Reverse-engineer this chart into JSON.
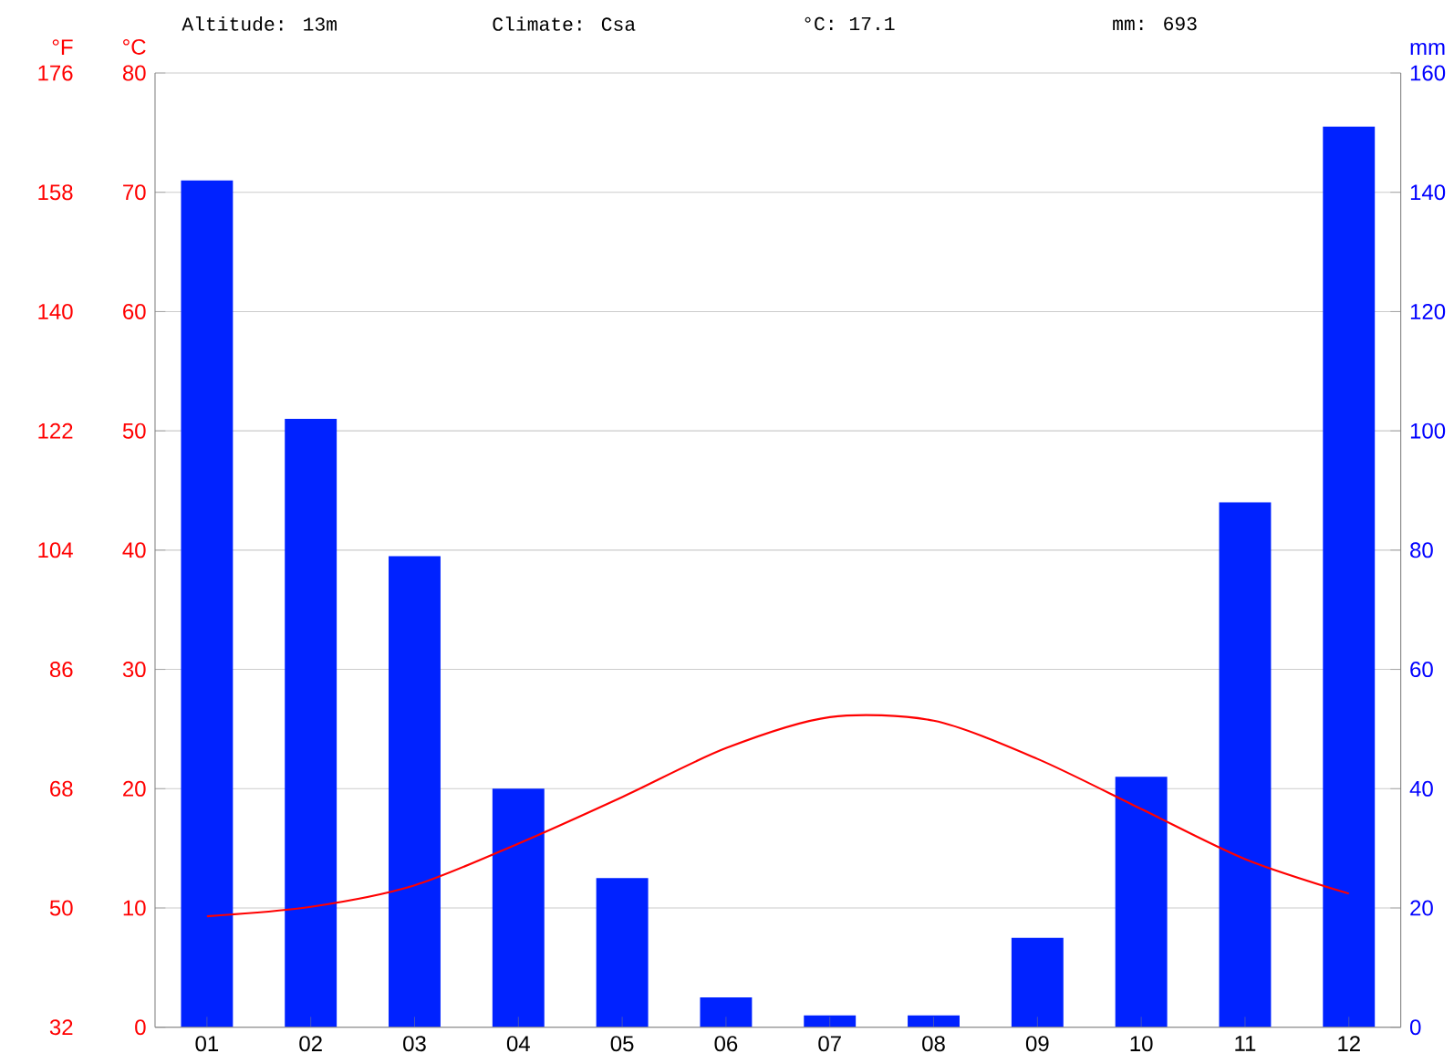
{
  "chart_data": {
    "type": "bar",
    "annotations": [
      "Altitude: 13m",
      "Climate: Csa",
      "°C: 17.1",
      "mm: 693"
    ],
    "categories": [
      "01",
      "02",
      "03",
      "04",
      "05",
      "06",
      "07",
      "08",
      "09",
      "10",
      "11",
      "12"
    ],
    "ylabel": "°C",
    "y2label": "mm",
    "y3label": "°F",
    "series": [
      {
        "axis": "y2",
        "color": "#0022ff",
        "values": [
          142,
          102,
          79,
          40,
          25,
          5,
          2,
          2,
          15,
          42,
          88,
          151
        ]
      },
      {
        "type": "line",
        "axis": "y",
        "color": "#ff0000",
        "values": [
          9.3,
          10.1,
          11.9,
          15.4,
          19.3,
          23.4,
          26.0,
          25.7,
          22.5,
          18.3,
          14.1,
          11.2
        ]
      }
    ],
    "ylim": [
      0,
      80
    ],
    "yticks": [
      0,
      10,
      20,
      30,
      40,
      50,
      60,
      70,
      80
    ],
    "y2lim": [
      0,
      160
    ],
    "y2ticks": [
      0,
      20,
      40,
      60,
      80,
      100,
      120,
      140,
      160
    ],
    "y3lim": [
      32,
      176
    ],
    "y3ticks": [
      32,
      50,
      68,
      86,
      104,
      122,
      140,
      158,
      176
    ],
    "grid": "y",
    "marker": "none",
    "line_style": "solid"
  }
}
